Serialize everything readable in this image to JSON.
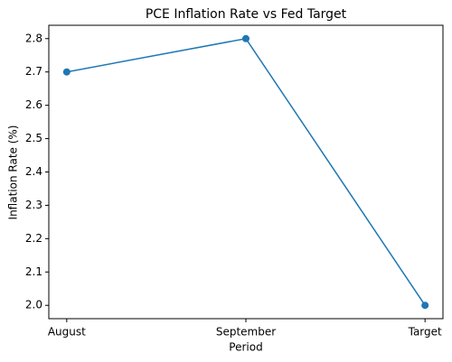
{
  "chart_data": {
    "type": "line",
    "title": "PCE Inflation Rate vs Fed Target",
    "x_label": "Period",
    "y_label": "Inflation Rate (%)",
    "categories": [
      "August",
      "September",
      "Target"
    ],
    "values": [
      2.7,
      2.8,
      2.0
    ],
    "color": "#1f77b4",
    "ylim": [
      1.96,
      2.84
    ],
    "yticks": [
      {
        "value": 2.0,
        "label": "2.0"
      },
      2.1,
      2.2,
      2.3,
      2.4,
      2.5,
      2.6,
      2.7,
      2.8
    ],
    "grid": false,
    "markers": true
  }
}
